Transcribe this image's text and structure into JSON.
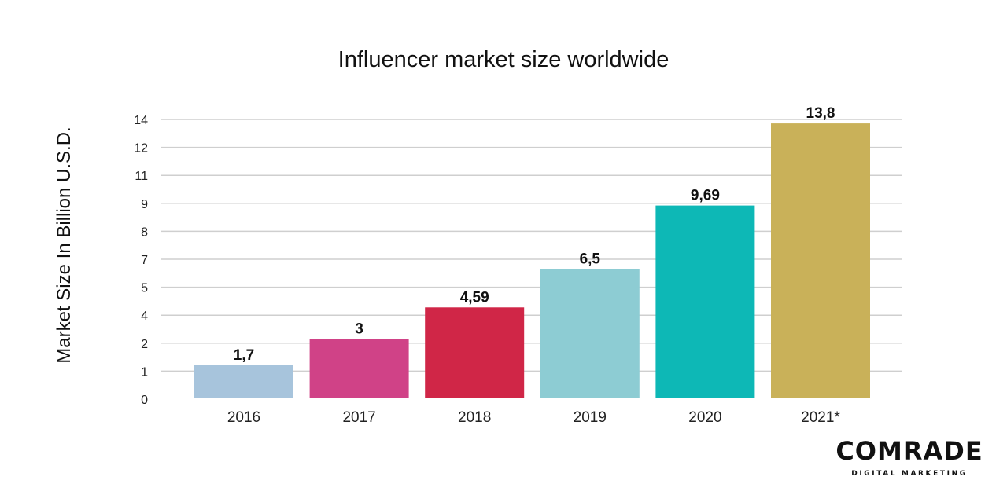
{
  "chart_data": {
    "type": "bar",
    "title": "Influencer market size worldwide",
    "xlabel": "",
    "ylabel": "Market Size In Billion U.S.D.",
    "ylim": [
      0,
      14
    ],
    "ytick_labels": [
      "0",
      "1",
      "2",
      "4",
      "5",
      "7",
      "8",
      "9",
      "11",
      "12",
      "14"
    ],
    "grid": true,
    "categories": [
      "2016",
      "2017",
      "2018",
      "2019",
      "2020",
      "2021*"
    ],
    "values": [
      1.7,
      3,
      4.59,
      6.5,
      9.69,
      13.8
    ],
    "data_labels": [
      "1,7",
      "3",
      "4,59",
      "6,5",
      "9,69",
      "13,8"
    ],
    "colors": [
      "#a7c4dc",
      "#d04287",
      "#d02647",
      "#8dccd3",
      "#0db8b6",
      "#c9b159"
    ]
  },
  "logo": {
    "name": "COMRADE",
    "tagline": "DIGITAL MARKETING"
  }
}
